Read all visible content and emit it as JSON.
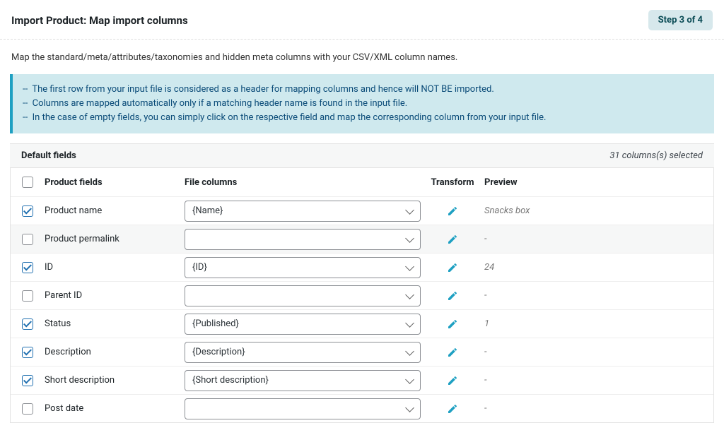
{
  "header": {
    "title": "Import Product: Map import columns",
    "step_label": "Step 3 of 4"
  },
  "subtext": "Map the standard/meta/attributes/taxonomies and hidden meta columns with your CSV/XML column names.",
  "notice": {
    "line1": "--  The first row from your input file is considered as a header for mapping columns and hence will NOT BE imported.",
    "line2": "--  Columns are mapped automatically only if a matching header name is found in the input file.",
    "line3": "--  In the case of empty fields, you can simply click on the respective field and map the corresponding column from your input file."
  },
  "section": {
    "title": "Default fields",
    "count_label": "31 columns(s) selected"
  },
  "columns": {
    "product_fields": "Product fields",
    "file_columns": "File columns",
    "transform": "Transform",
    "preview": "Preview"
  },
  "rows": [
    {
      "checked": true,
      "field": "Product name",
      "file": "{Name}",
      "preview": "Snacks box",
      "alt": false
    },
    {
      "checked": false,
      "field": "Product permalink",
      "file": "",
      "preview": "-",
      "alt": true
    },
    {
      "checked": true,
      "field": "ID",
      "file": "{ID}",
      "preview": "24",
      "alt": false
    },
    {
      "checked": false,
      "field": "Parent ID",
      "file": "",
      "preview": "-",
      "alt": false
    },
    {
      "checked": true,
      "field": "Status",
      "file": "{Published}",
      "preview": "1",
      "alt": false
    },
    {
      "checked": true,
      "field": "Description",
      "file": "{Description}",
      "preview": "-",
      "alt": false
    },
    {
      "checked": true,
      "field": "Short description",
      "file": "{Short description}",
      "preview": "-",
      "alt": false
    },
    {
      "checked": false,
      "field": "Post date",
      "file": "",
      "preview": "-",
      "alt": false
    }
  ],
  "colors": {
    "accent": "#2271b1",
    "pencil": "#1ea0c2"
  }
}
